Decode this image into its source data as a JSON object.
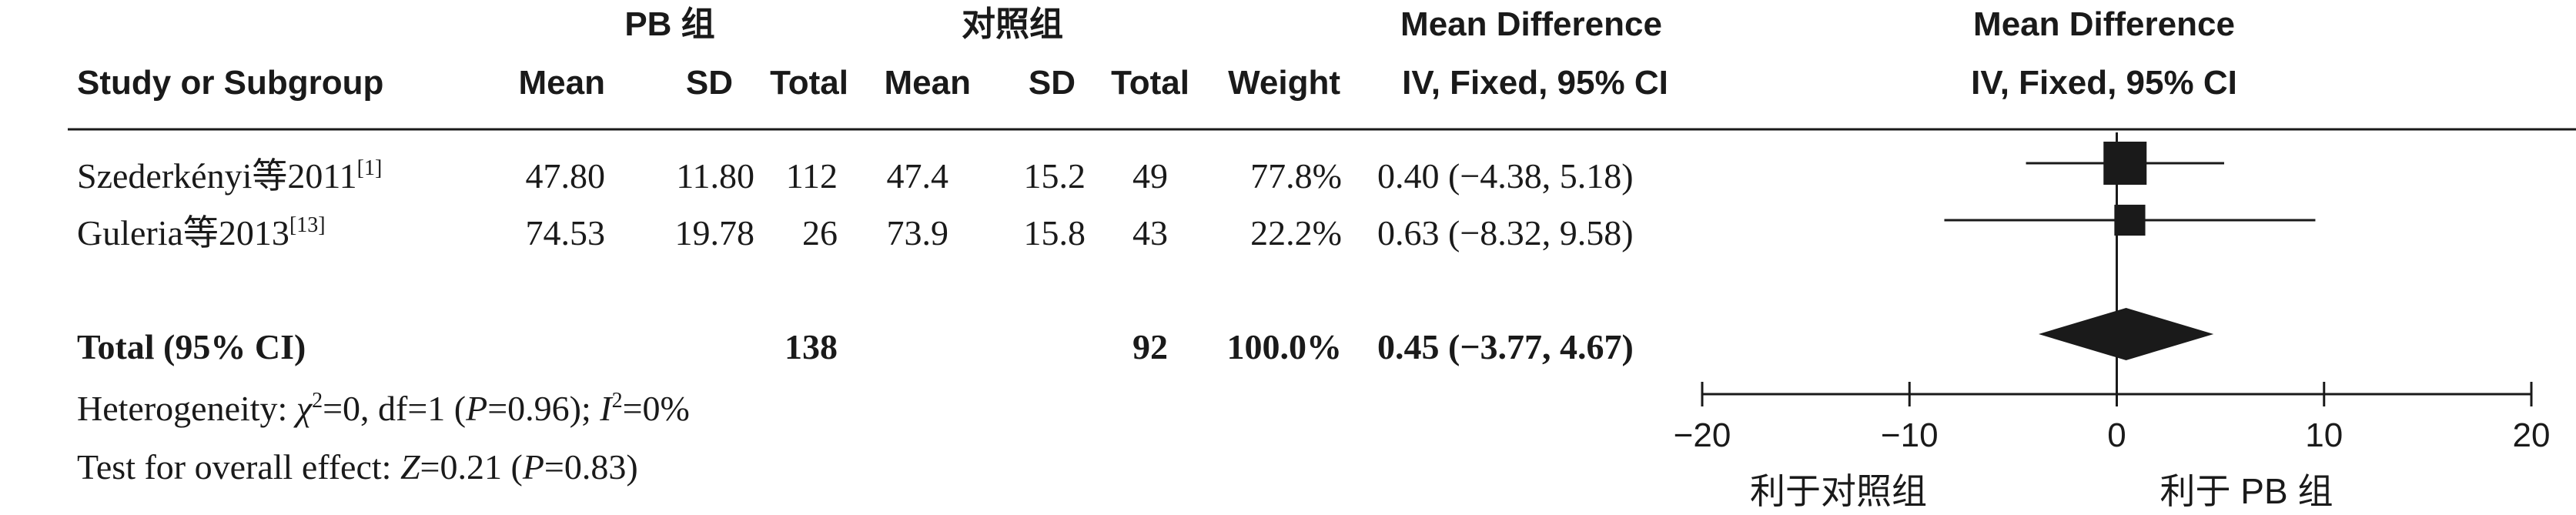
{
  "header": {
    "group_pb": "PB 组",
    "group_ctrl": "对照组",
    "md_title_left": "Mean Difference",
    "md_method_left": "IV, Fixed, 95% CI",
    "md_title_right": "Mean Difference",
    "md_method_right": "IV, Fixed, 95% CI",
    "study_col": "Study or Subgroup",
    "mean": "Mean",
    "sd": "SD",
    "total": "Total",
    "weight": "Weight"
  },
  "studies": [
    {
      "name": "Szederkényi等2011",
      "ref": "[1]",
      "pb_mean": "47.80",
      "pb_sd": "11.80",
      "pb_total": "112",
      "ctrl_mean": "47.4",
      "ctrl_sd": "15.2",
      "ctrl_total": "49",
      "weight_label": "77.8%",
      "ci_label": "0.40 (−4.38, 5.18)"
    },
    {
      "name": "Guleria等2013",
      "ref": "[13]",
      "pb_mean": "74.53",
      "pb_sd": "19.78",
      "pb_total": "26",
      "ctrl_mean": "73.9",
      "ctrl_sd": "15.8",
      "ctrl_total": "43",
      "weight_label": "22.2%",
      "ci_label": "0.63 (−8.32, 9.58)"
    }
  ],
  "total": {
    "label": "Total (95% CI)",
    "pb_total": "138",
    "ctrl_total": "92",
    "weight_label": "100.0%",
    "ci_label": "0.45 (−3.77, 4.67)"
  },
  "heterogeneity": {
    "prefix": "Heterogeneity: ",
    "chi_sym": "χ",
    "chi_exp": "2",
    "chi_rest": "=0, df=1 (",
    "p_sym": "P",
    "p_rest": "=0.96); ",
    "i_sym": "I",
    "i_exp": "2",
    "i_rest": "=0%"
  },
  "overall_effect": {
    "prefix": "Test for overall effect: ",
    "z_sym": "Z",
    "z_rest": "=0.21 (",
    "p_sym": "P",
    "p_rest": "=0.83)"
  },
  "chart_data": {
    "type": "forest",
    "effect_measure": "Mean Difference (IV, Fixed, 95% CI)",
    "studies": [
      {
        "name": "Szederkényi等2011",
        "estimate": 0.4,
        "ci_low": -4.38,
        "ci_high": 5.18,
        "weight": 77.8
      },
      {
        "name": "Guleria等2013",
        "estimate": 0.63,
        "ci_low": -8.32,
        "ci_high": 9.58,
        "weight": 22.2
      }
    ],
    "pooled": {
      "name": "Total (95% CI)",
      "estimate": 0.45,
      "ci_low": -3.77,
      "ci_high": 4.67
    },
    "x_ticks": [
      -20,
      -10,
      0,
      10,
      20
    ],
    "tick_labels": [
      "−20",
      "−10",
      "0",
      "10",
      "20"
    ],
    "xlim": [
      -20,
      20
    ],
    "favors_left": "利于对照组",
    "favors_right": "利于 PB 组",
    "colors": {
      "marks": "#1a1a1a",
      "background": "#ffffff"
    }
  }
}
